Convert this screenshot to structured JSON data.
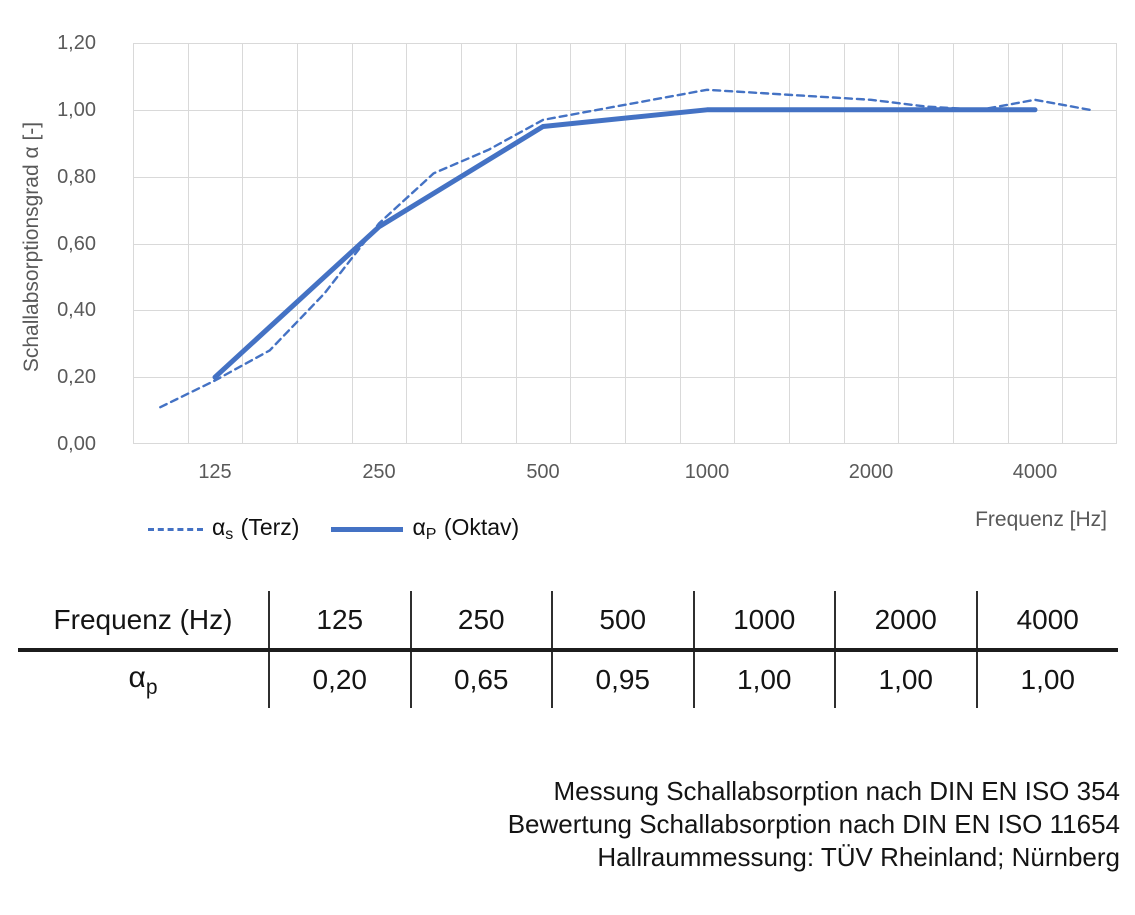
{
  "chart_data": {
    "type": "line",
    "title": "",
    "ylabel": "Schallabsorptionsgrad α [-]",
    "xlabel": "Frequenz [Hz]",
    "ylim": [
      0,
      1.2
    ],
    "grid": true,
    "legend_position": "bottom-left",
    "axis_text_color": "#595959",
    "gridline_color": "#D9D9D9",
    "line_color": "#4472C4",
    "y_ticks": [
      {
        "label": "0,00",
        "value": 0.0
      },
      {
        "label": "0,20",
        "value": 0.2
      },
      {
        "label": "0,40",
        "value": 0.4
      },
      {
        "label": "0,60",
        "value": 0.6
      },
      {
        "label": "0,80",
        "value": 0.8
      },
      {
        "label": "1,00",
        "value": 1.0
      },
      {
        "label": "1,20",
        "value": 1.2
      }
    ],
    "categories": [
      "100",
      "125",
      "160",
      "200",
      "250",
      "315",
      "400",
      "500",
      "630",
      "800",
      "1000",
      "1250",
      "1600",
      "2000",
      "2500",
      "3150",
      "4000",
      "5000"
    ],
    "x_ticks": [
      {
        "label": "125",
        "category_index": 1
      },
      {
        "label": "250",
        "category_index": 4
      },
      {
        "label": "500",
        "category_index": 7
      },
      {
        "label": "1000",
        "category_index": 10
      },
      {
        "label": "2000",
        "category_index": 13
      },
      {
        "label": "4000",
        "category_index": 16
      }
    ],
    "series": [
      {
        "name": "αs (Terz)",
        "name_parts": {
          "symbol": "α",
          "subscript": "s",
          "suffix": " (Terz)"
        },
        "style": "dashed",
        "color": "#4472C4",
        "category_indices": [
          0,
          1,
          2,
          3,
          4,
          5,
          6,
          7,
          8,
          9,
          10,
          11,
          12,
          13,
          14,
          15,
          16,
          17
        ],
        "values": [
          0.11,
          0.19,
          0.28,
          0.45,
          0.66,
          0.81,
          0.88,
          0.97,
          1.0,
          1.03,
          1.06,
          1.05,
          1.04,
          1.03,
          1.01,
          1.0,
          1.03,
          1.0
        ]
      },
      {
        "name": "αP (Oktav)",
        "name_parts": {
          "symbol": "α",
          "subscript": "P",
          "suffix": " (Oktav)"
        },
        "style": "solid",
        "color": "#4472C4",
        "category_indices": [
          1,
          4,
          7,
          10,
          13,
          16
        ],
        "values": [
          0.2,
          0.65,
          0.95,
          1.0,
          1.0,
          1.0
        ]
      }
    ]
  },
  "table": {
    "header_row": [
      "Frequenz (Hz)",
      "125",
      "250",
      "500",
      "1000",
      "2000",
      "4000"
    ],
    "row_label_parts": {
      "symbol": "α",
      "subscript": "p"
    },
    "values": [
      "0,20",
      "0,65",
      "0,95",
      "1,00",
      "1,00",
      "1,00"
    ]
  },
  "footer": {
    "lines": [
      "Messung Schallabsorption nach DIN EN ISO 354",
      "Bewertung Schallabsorption nach DIN EN ISO 11654",
      "Hallraummessung: TÜV Rheinland; Nürnberg"
    ]
  }
}
